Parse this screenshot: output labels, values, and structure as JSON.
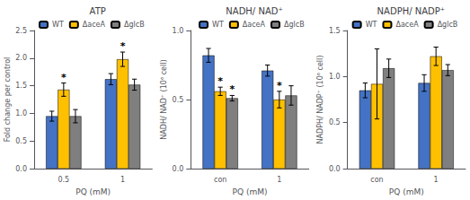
{
  "chart_data": [
    {
      "type": "bar",
      "title": "ATP",
      "xlabel": "PQ (mM)",
      "ylabel": "Fold change per control",
      "categories": [
        "0.5",
        "1"
      ],
      "series": [
        {
          "name": "WT",
          "color": "#4472C4",
          "values": [
            0.95,
            1.62
          ],
          "errors": [
            0.09,
            0.1
          ]
        },
        {
          "name": "ΔaceA",
          "color": "#FFC000",
          "values": [
            1.43,
            1.98
          ],
          "errors": [
            0.12,
            0.13
          ]
        },
        {
          "name": "ΔglcB",
          "color": "#7F7F7F",
          "values": [
            0.95,
            1.52
          ],
          "errors": [
            0.12,
            0.1
          ]
        }
      ],
      "annotations": [
        {
          "text": "*",
          "series": "ΔaceA",
          "category": "0.5"
        },
        {
          "text": "*",
          "series": "ΔaceA",
          "category": "1"
        }
      ],
      "ylim": [
        0,
        2.5
      ],
      "yticks": [
        {
          "value": 0,
          "label": "0.0"
        },
        {
          "value": 0.5,
          "label": "0.5"
        },
        {
          "value": 1.0,
          "label": "1.0"
        },
        {
          "value": 1.5,
          "label": "1.5"
        },
        {
          "value": 2.0,
          "label": "2.0"
        },
        {
          "value": 2.5,
          "label": "2.5"
        }
      ],
      "legend": "upper left",
      "grid": false
    },
    {
      "type": "bar",
      "title": "NADH/ NAD⁺",
      "xlabel": "PQ (mM)",
      "ylabel": "NADH/ NAD⁺ (10⁶ cell)",
      "categories": [
        "con",
        "1"
      ],
      "series": [
        {
          "name": "WT",
          "color": "#4472C4",
          "values": [
            0.82,
            0.71
          ],
          "errors": [
            0.05,
            0.04
          ]
        },
        {
          "name": "ΔaceA",
          "color": "#FFC000",
          "values": [
            0.56,
            0.5
          ],
          "errors": [
            0.03,
            0.06
          ]
        },
        {
          "name": "ΔglcB",
          "color": "#7F7F7F",
          "values": [
            0.51,
            0.53
          ],
          "errors": [
            0.02,
            0.07
          ]
        }
      ],
      "annotations": [
        {
          "text": "*",
          "series": "ΔaceA",
          "category": "con"
        },
        {
          "text": "*",
          "series": "ΔglcB",
          "category": "con"
        },
        {
          "text": "*",
          "series": "ΔaceA",
          "category": "1"
        }
      ],
      "ylim": [
        0,
        1.0
      ],
      "yticks": [
        {
          "value": 0,
          "label": "0.0"
        },
        {
          "value": 0.5,
          "label": "0.5"
        },
        {
          "value": 1.0,
          "label": "1.0"
        }
      ],
      "legend": "upper right",
      "grid": false
    },
    {
      "type": "bar",
      "title": "NADPH/ NADP⁺",
      "xlabel": "PQ (mM)",
      "ylabel": "NADPH/ NADP⁺ (10⁶ cell)",
      "categories": [
        "con",
        "1"
      ],
      "series": [
        {
          "name": "WT",
          "color": "#4472C4",
          "values": [
            0.85,
            0.93
          ],
          "errors": [
            0.08,
            0.09
          ]
        },
        {
          "name": "ΔaceA",
          "color": "#FFC000",
          "values": [
            0.92,
            1.22
          ],
          "errors": [
            0.38,
            0.1
          ]
        },
        {
          "name": "ΔglcB",
          "color": "#7F7F7F",
          "values": [
            1.09,
            1.07
          ],
          "errors": [
            0.1,
            0.06
          ]
        }
      ],
      "ylim": [
        0,
        1.5
      ],
      "yticks": [
        {
          "value": 0,
          "label": "0.0"
        },
        {
          "value": 0.5,
          "label": "0.5"
        },
        {
          "value": 1.0,
          "label": "1.0"
        },
        {
          "value": 1.5,
          "label": "1.5"
        }
      ],
      "legend": "upper left",
      "grid": false
    }
  ]
}
